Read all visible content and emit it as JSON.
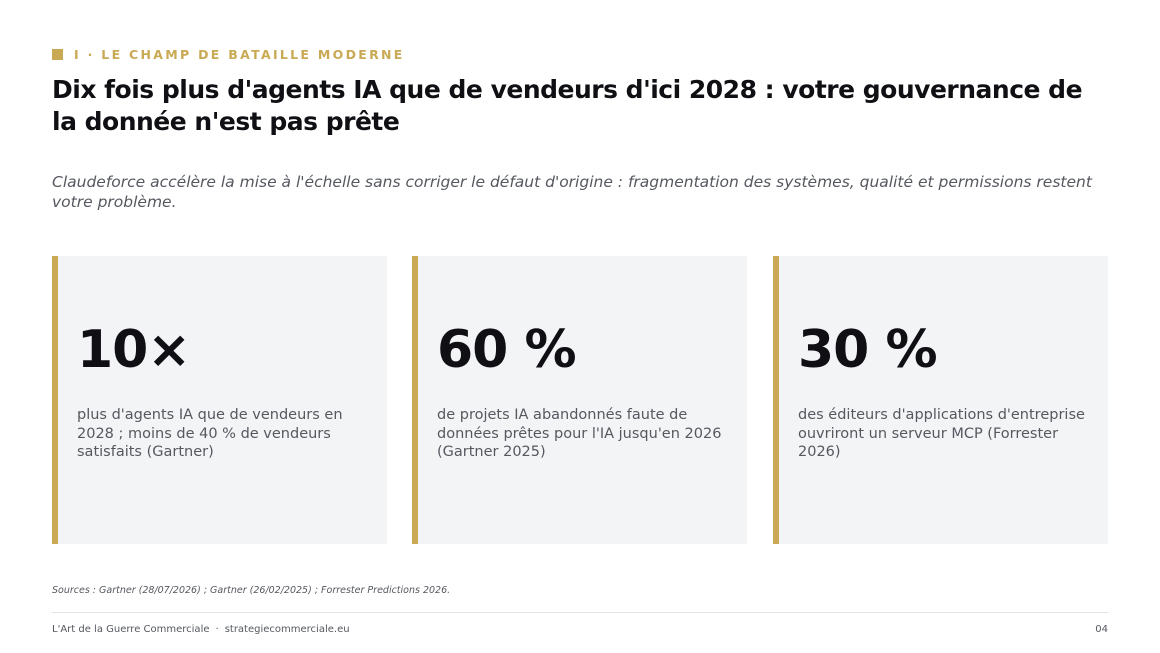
{
  "header": {
    "section_label": "I · LE CHAMP DE BATAILLE MODERNE",
    "title": "Dix fois plus d'agents IA que de vendeurs d'ici 2028 : votre gouvernance de la donnée n'est pas prête",
    "subtitle": "Claudeforce accélère la mise à l'échelle sans corriger le défaut d'origine : fragmentation des systèmes, qualité et permissions restent votre problème."
  },
  "cards": [
    {
      "stat": "10×",
      "description": "plus d'agents IA que de vendeurs en 2028 ; moins de 40 % de vendeurs satisfaits (Gartner)"
    },
    {
      "stat": "60 %",
      "description": "de projets IA abandonnés faute de données prêtes pour l'IA jusqu'en 2026 (Gartner 2025)"
    },
    {
      "stat": "30 %",
      "description": "des éditeurs d'applications d'entreprise ouvriront un serveur MCP (Forrester 2026)"
    }
  ],
  "sources": "Sources : Gartner (28/07/2026) ; Gartner (26/02/2025) ; Forrester Predictions 2026.",
  "footer": {
    "brand": "L'Art de la Guerre Commerciale",
    "separator": "·",
    "website": "strategiecommerciale.eu",
    "page_number": "04"
  },
  "colors": {
    "accent": "#c9a954",
    "card_background": "#f3f4f6",
    "heading": "#0f0f14",
    "body_text": "#55585f"
  }
}
